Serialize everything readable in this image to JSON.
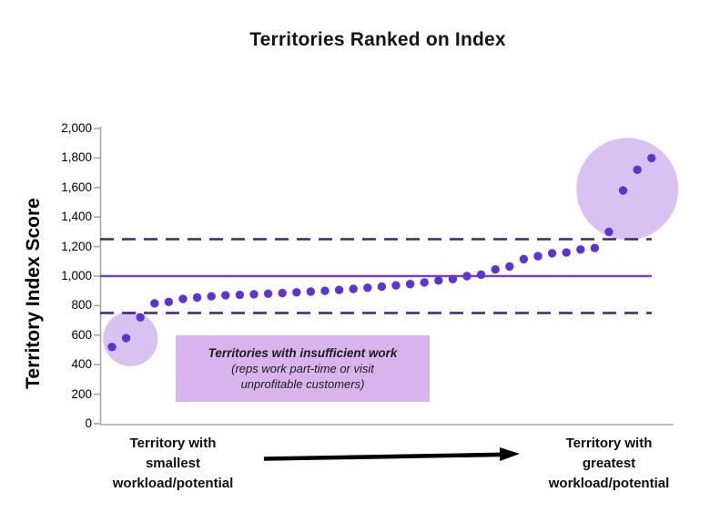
{
  "title": "Territories Ranked on Index",
  "colors": {
    "dot": "#5c35cd",
    "solid_reference_line": "#7f3fc1",
    "dashed_reference_line": "#422472",
    "highlight_circle": "#d9c2f2",
    "annotation_background": "#d7b5ec",
    "axis": "#a8a8a8",
    "arrow": "#000000",
    "text": "#141414"
  },
  "chart_data": {
    "type": "scatter",
    "title": "Territories Ranked on Index",
    "xlabel": "",
    "ylabel": "Territory Index Score",
    "ylim": [
      0,
      2000
    ],
    "ytick_interval": 200,
    "ytick_labels": [
      "0",
      "200",
      "400",
      "600",
      "800",
      "1,000",
      "1,200",
      "1,400",
      "1,600",
      "1,800",
      "2,000"
    ],
    "grid": false,
    "legend": false,
    "x_description": "39 territories ranked ascending by index score (no x tick labels)",
    "values": [
      520,
      580,
      720,
      815,
      825,
      845,
      855,
      863,
      870,
      873,
      877,
      881,
      885,
      890,
      895,
      900,
      906,
      913,
      921,
      929,
      937,
      946,
      957,
      970,
      980,
      1000,
      1010,
      1045,
      1065,
      1115,
      1135,
      1155,
      1160,
      1180,
      1190,
      1300,
      1580,
      1720,
      1800
    ],
    "reference_lines": [
      {
        "value": 1250,
        "style": "dashed"
      },
      {
        "value": 1000,
        "style": "solid"
      },
      {
        "value": 750,
        "style": "dashed"
      }
    ],
    "highlight_circles": [
      {
        "name": "low-outliers",
        "center_rank": 1.3,
        "center_value": 575,
        "radius_px": 30
      },
      {
        "name": "high-outliers",
        "center_rank": 36.3,
        "center_value": 1590,
        "radius_px": 56
      }
    ],
    "annotation": {
      "line1": "Territories with insufficient work",
      "line2": "(reps work part-time or visit",
      "line3": "unprofitable customers)"
    },
    "x_axis_category_labels": {
      "left": "Territory with\nsmallest\nworkload/potential",
      "right": "Territory with\ngreatest\nworkload/potential"
    },
    "arrow": {
      "direction": "left-to-right"
    }
  }
}
